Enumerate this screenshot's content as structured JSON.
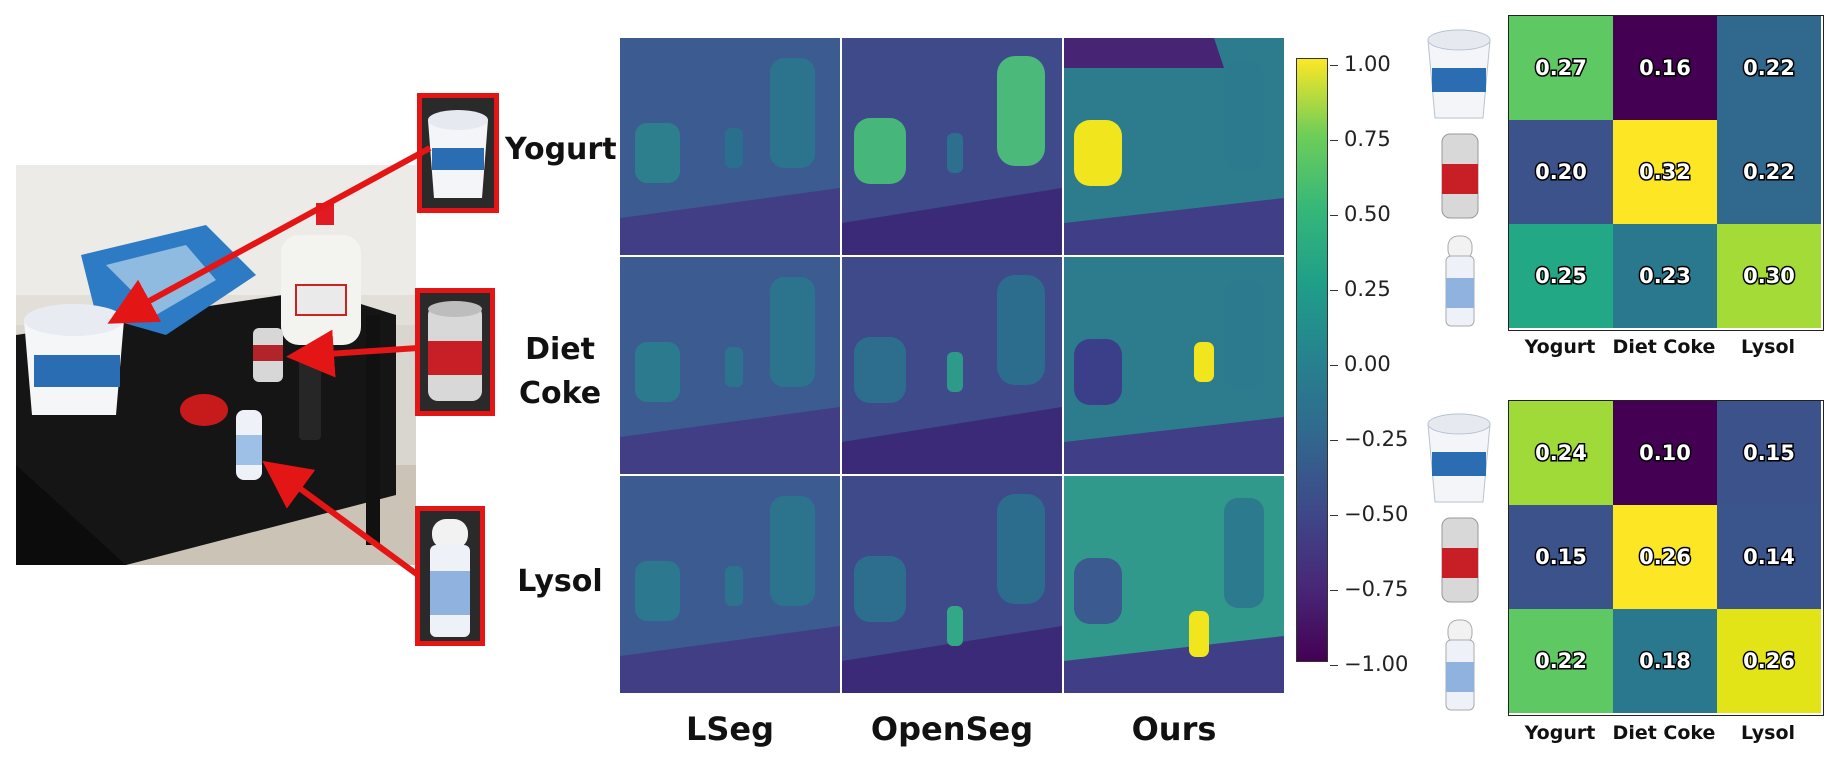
{
  "scene": {
    "rows": [
      "Yogurt",
      "Diet Coke",
      "Lysol"
    ],
    "row_label_lines": [
      [
        "Yogurt"
      ],
      [
        "Diet",
        "Coke"
      ],
      [
        "Lysol"
      ]
    ]
  },
  "methods": [
    "LSeg",
    "OpenSeg",
    "Ours"
  ],
  "colorbar": {
    "ticks": [
      "1.00",
      "0.75",
      "0.50",
      "0.25",
      "0.00",
      "−0.25",
      "−0.50",
      "−0.75",
      "−1.00"
    ],
    "min": -1.0,
    "max": 1.0
  },
  "matrices": [
    {
      "columns": [
        "Yogurt",
        "Diet Coke",
        "Lysol"
      ],
      "values": [
        [
          "0.27",
          "0.16",
          "0.22"
        ],
        [
          "0.20",
          "0.32",
          "0.22"
        ],
        [
          "0.25",
          "0.23",
          "0.30"
        ]
      ],
      "colors": [
        [
          "#5ec962",
          "#440154",
          "#31688e"
        ],
        [
          "#3b528b",
          "#fde725",
          "#31688e"
        ],
        [
          "#22a884",
          "#2a788e",
          "#a5db36"
        ]
      ]
    },
    {
      "columns": [
        "Yogurt",
        "Diet Coke",
        "Lysol"
      ],
      "values": [
        [
          "0.24",
          "0.10",
          "0.15"
        ],
        [
          "0.15",
          "0.26",
          "0.14"
        ],
        [
          "0.22",
          "0.18",
          "0.26"
        ]
      ],
      "colors": [
        [
          "#a0da39",
          "#440154",
          "#3b528b"
        ],
        [
          "#3b528b",
          "#fde725",
          "#3a548c"
        ],
        [
          "#5ec962",
          "#2a788e",
          "#e3e418"
        ]
      ]
    }
  ],
  "colors": {
    "highlight_red": "#e41515",
    "viridis_dark": "#440154",
    "viridis_yellow": "#fde725"
  }
}
